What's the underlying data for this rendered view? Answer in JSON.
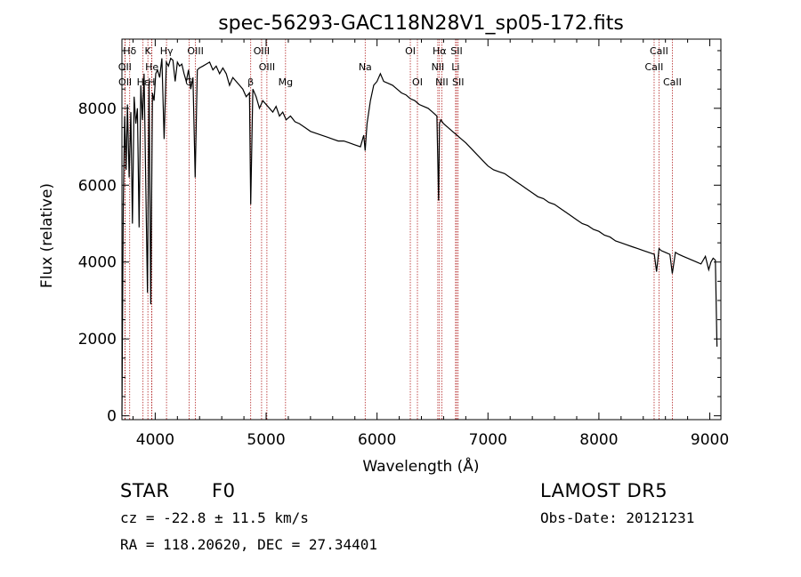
{
  "chart_data": {
    "type": "line",
    "title": "spec-56293-GAC118N28V1_sp05-172.fits",
    "xlabel": "Wavelength (Å)",
    "ylabel": "Flux (relative)",
    "xlim": [
      3700,
      9100
    ],
    "ylim": [
      -100,
      9800
    ],
    "x_ticks": [
      "4000",
      "5000",
      "6000",
      "7000",
      "8000",
      "9000"
    ],
    "y_ticks": [
      "0",
      "2000",
      "4000",
      "6000",
      "8000"
    ],
    "x_tick_values": [
      4000,
      5000,
      6000,
      7000,
      8000,
      9000
    ],
    "y_tick_values": [
      0,
      2000,
      4000,
      6000,
      8000
    ],
    "grid": false,
    "line_color": "#000000",
    "marker_color": "#b22222",
    "spectral_lines": [
      {
        "label": "Hδ",
        "wavelength": 3770,
        "row": 1
      },
      {
        "label": "OII",
        "wavelength": 3727,
        "row": 2
      },
      {
        "label": "OII",
        "wavelength": 3729,
        "row": 3
      },
      {
        "label": "K",
        "wavelength": 3934,
        "row": 1
      },
      {
        "label": "He",
        "wavelength": 3970,
        "row": 2
      },
      {
        "label": "Hε",
        "wavelength": 3890,
        "row": 3
      },
      {
        "label": "H",
        "wavelength": 3968,
        "row": 3
      },
      {
        "label": "Hγ",
        "wavelength": 4102,
        "row": 1
      },
      {
        "label": "OIII",
        "wavelength": 4363,
        "row": 1
      },
      {
        "label": "G",
        "wavelength": 4305,
        "row": 3
      },
      {
        "label": "OIII",
        "wavelength": 4959,
        "row": 1
      },
      {
        "label": "OIII",
        "wavelength": 5007,
        "row": 2
      },
      {
        "label": "β",
        "wavelength": 4861,
        "row": 3
      },
      {
        "label": "Mg",
        "wavelength": 5175,
        "row": 3
      },
      {
        "label": "Na",
        "wavelength": 5893,
        "row": 2
      },
      {
        "label": "OI",
        "wavelength": 6300,
        "row": 1
      },
      {
        "label": "OI",
        "wavelength": 6364,
        "row": 3
      },
      {
        "label": "Hα",
        "wavelength": 6563,
        "row": 1
      },
      {
        "label": "NII",
        "wavelength": 6548,
        "row": 2
      },
      {
        "label": "NII",
        "wavelength": 6584,
        "row": 3
      },
      {
        "label": "SII",
        "wavelength": 6717,
        "row": 1
      },
      {
        "label": "Li",
        "wavelength": 6708,
        "row": 2
      },
      {
        "label": "SII",
        "wavelength": 6731,
        "row": 3
      },
      {
        "label": "CaII",
        "wavelength": 8542,
        "row": 1
      },
      {
        "label": "CaII",
        "wavelength": 8498,
        "row": 2
      },
      {
        "label": "CaII",
        "wavelength": 8662,
        "row": 3
      }
    ],
    "series": [
      {
        "x": [
          3700,
          3712,
          3725,
          3738,
          3750,
          3765,
          3780,
          3795,
          3810,
          3825,
          3840,
          3855,
          3870,
          3885,
          3900,
          3915,
          3930,
          3945,
          3960,
          3975,
          3990,
          4005,
          4020,
          4040,
          4060,
          4080,
          4100,
          4120,
          4140,
          4160,
          4180,
          4200,
          4220,
          4240,
          4260,
          4280,
          4300,
          4320,
          4340,
          4360,
          4380,
          4400,
          4430,
          4460,
          4490,
          4520,
          4550,
          4580,
          4610,
          4640,
          4670,
          4700,
          4730,
          4760,
          4790,
          4820,
          4850,
          4861,
          4880,
          4910,
          4940,
          4970,
          5000,
          5030,
          5060,
          5090,
          5120,
          5150,
          5180,
          5220,
          5260,
          5300,
          5350,
          5400,
          5450,
          5500,
          5550,
          5600,
          5650,
          5700,
          5750,
          5800,
          5850,
          5880,
          5893,
          5910,
          5940,
          5970,
          6000,
          6030,
          6060,
          6100,
          6140,
          6180,
          6220,
          6260,
          6300,
          6340,
          6380,
          6420,
          6460,
          6500,
          6540,
          6555,
          6563,
          6575,
          6600,
          6640,
          6680,
          6720,
          6760,
          6800,
          6850,
          6900,
          6950,
          7000,
          7050,
          7100,
          7150,
          7200,
          7250,
          7300,
          7350,
          7400,
          7450,
          7500,
          7550,
          7600,
          7650,
          7700,
          7750,
          7800,
          7850,
          7900,
          7950,
          8000,
          8050,
          8100,
          8150,
          8200,
          8250,
          8300,
          8350,
          8400,
          8450,
          8500,
          8520,
          8542,
          8560,
          8600,
          8640,
          8662,
          8690,
          8720,
          8760,
          8800,
          8840,
          8880,
          8920,
          8960,
          8990,
          9010,
          9030,
          9050,
          9065
        ],
        "values": [
          0,
          5500,
          7800,
          6400,
          8100,
          6200,
          7900,
          5000,
          8300,
          7600,
          8000,
          4900,
          8600,
          7700,
          8900,
          6000,
          3200,
          8700,
          2900,
          8400,
          8200,
          8900,
          9000,
          8800,
          9300,
          7200,
          9200,
          9100,
          9300,
          9250,
          8700,
          9200,
          9100,
          9150,
          8900,
          8700,
          9000,
          8500,
          8800,
          6200,
          9000,
          9050,
          9100,
          9150,
          9200,
          9000,
          9100,
          8900,
          9050,
          8900,
          8600,
          8800,
          8700,
          8600,
          8500,
          8300,
          8400,
          5500,
          8500,
          8300,
          8000,
          8200,
          8100,
          8000,
          7900,
          8050,
          7800,
          7900,
          7700,
          7800,
          7650,
          7600,
          7500,
          7400,
          7350,
          7300,
          7250,
          7200,
          7150,
          7150,
          7100,
          7050,
          7000,
          7300,
          6900,
          7600,
          8200,
          8600,
          8700,
          8900,
          8700,
          8650,
          8600,
          8500,
          8400,
          8350,
          8250,
          8200,
          8100,
          8050,
          8000,
          7900,
          7800,
          5600,
          7600,
          7700,
          7600,
          7500,
          7400,
          7300,
          7200,
          7100,
          6950,
          6800,
          6650,
          6500,
          6400,
          6350,
          6300,
          6200,
          6100,
          6000,
          5900,
          5800,
          5700,
          5650,
          5550,
          5500,
          5400,
          5300,
          5200,
          5100,
          5000,
          4950,
          4850,
          4800,
          4700,
          4650,
          4550,
          4500,
          4450,
          4400,
          4350,
          4300,
          4250,
          4200,
          3750,
          4350,
          4300,
          4250,
          4200,
          3700,
          4250,
          4200,
          4150,
          4100,
          4050,
          4000,
          3950,
          4150,
          3800,
          4000,
          4100,
          4050,
          1800
        ]
      }
    ]
  },
  "info": {
    "class": "STAR",
    "subclass": "F0",
    "survey": "LAMOST DR5",
    "cz": "cz = -22.8 ± 11.5 km/s",
    "obs_date": "Obs-Date: 20121231",
    "coords": "RA = 118.20620, DEC =  27.34401"
  }
}
